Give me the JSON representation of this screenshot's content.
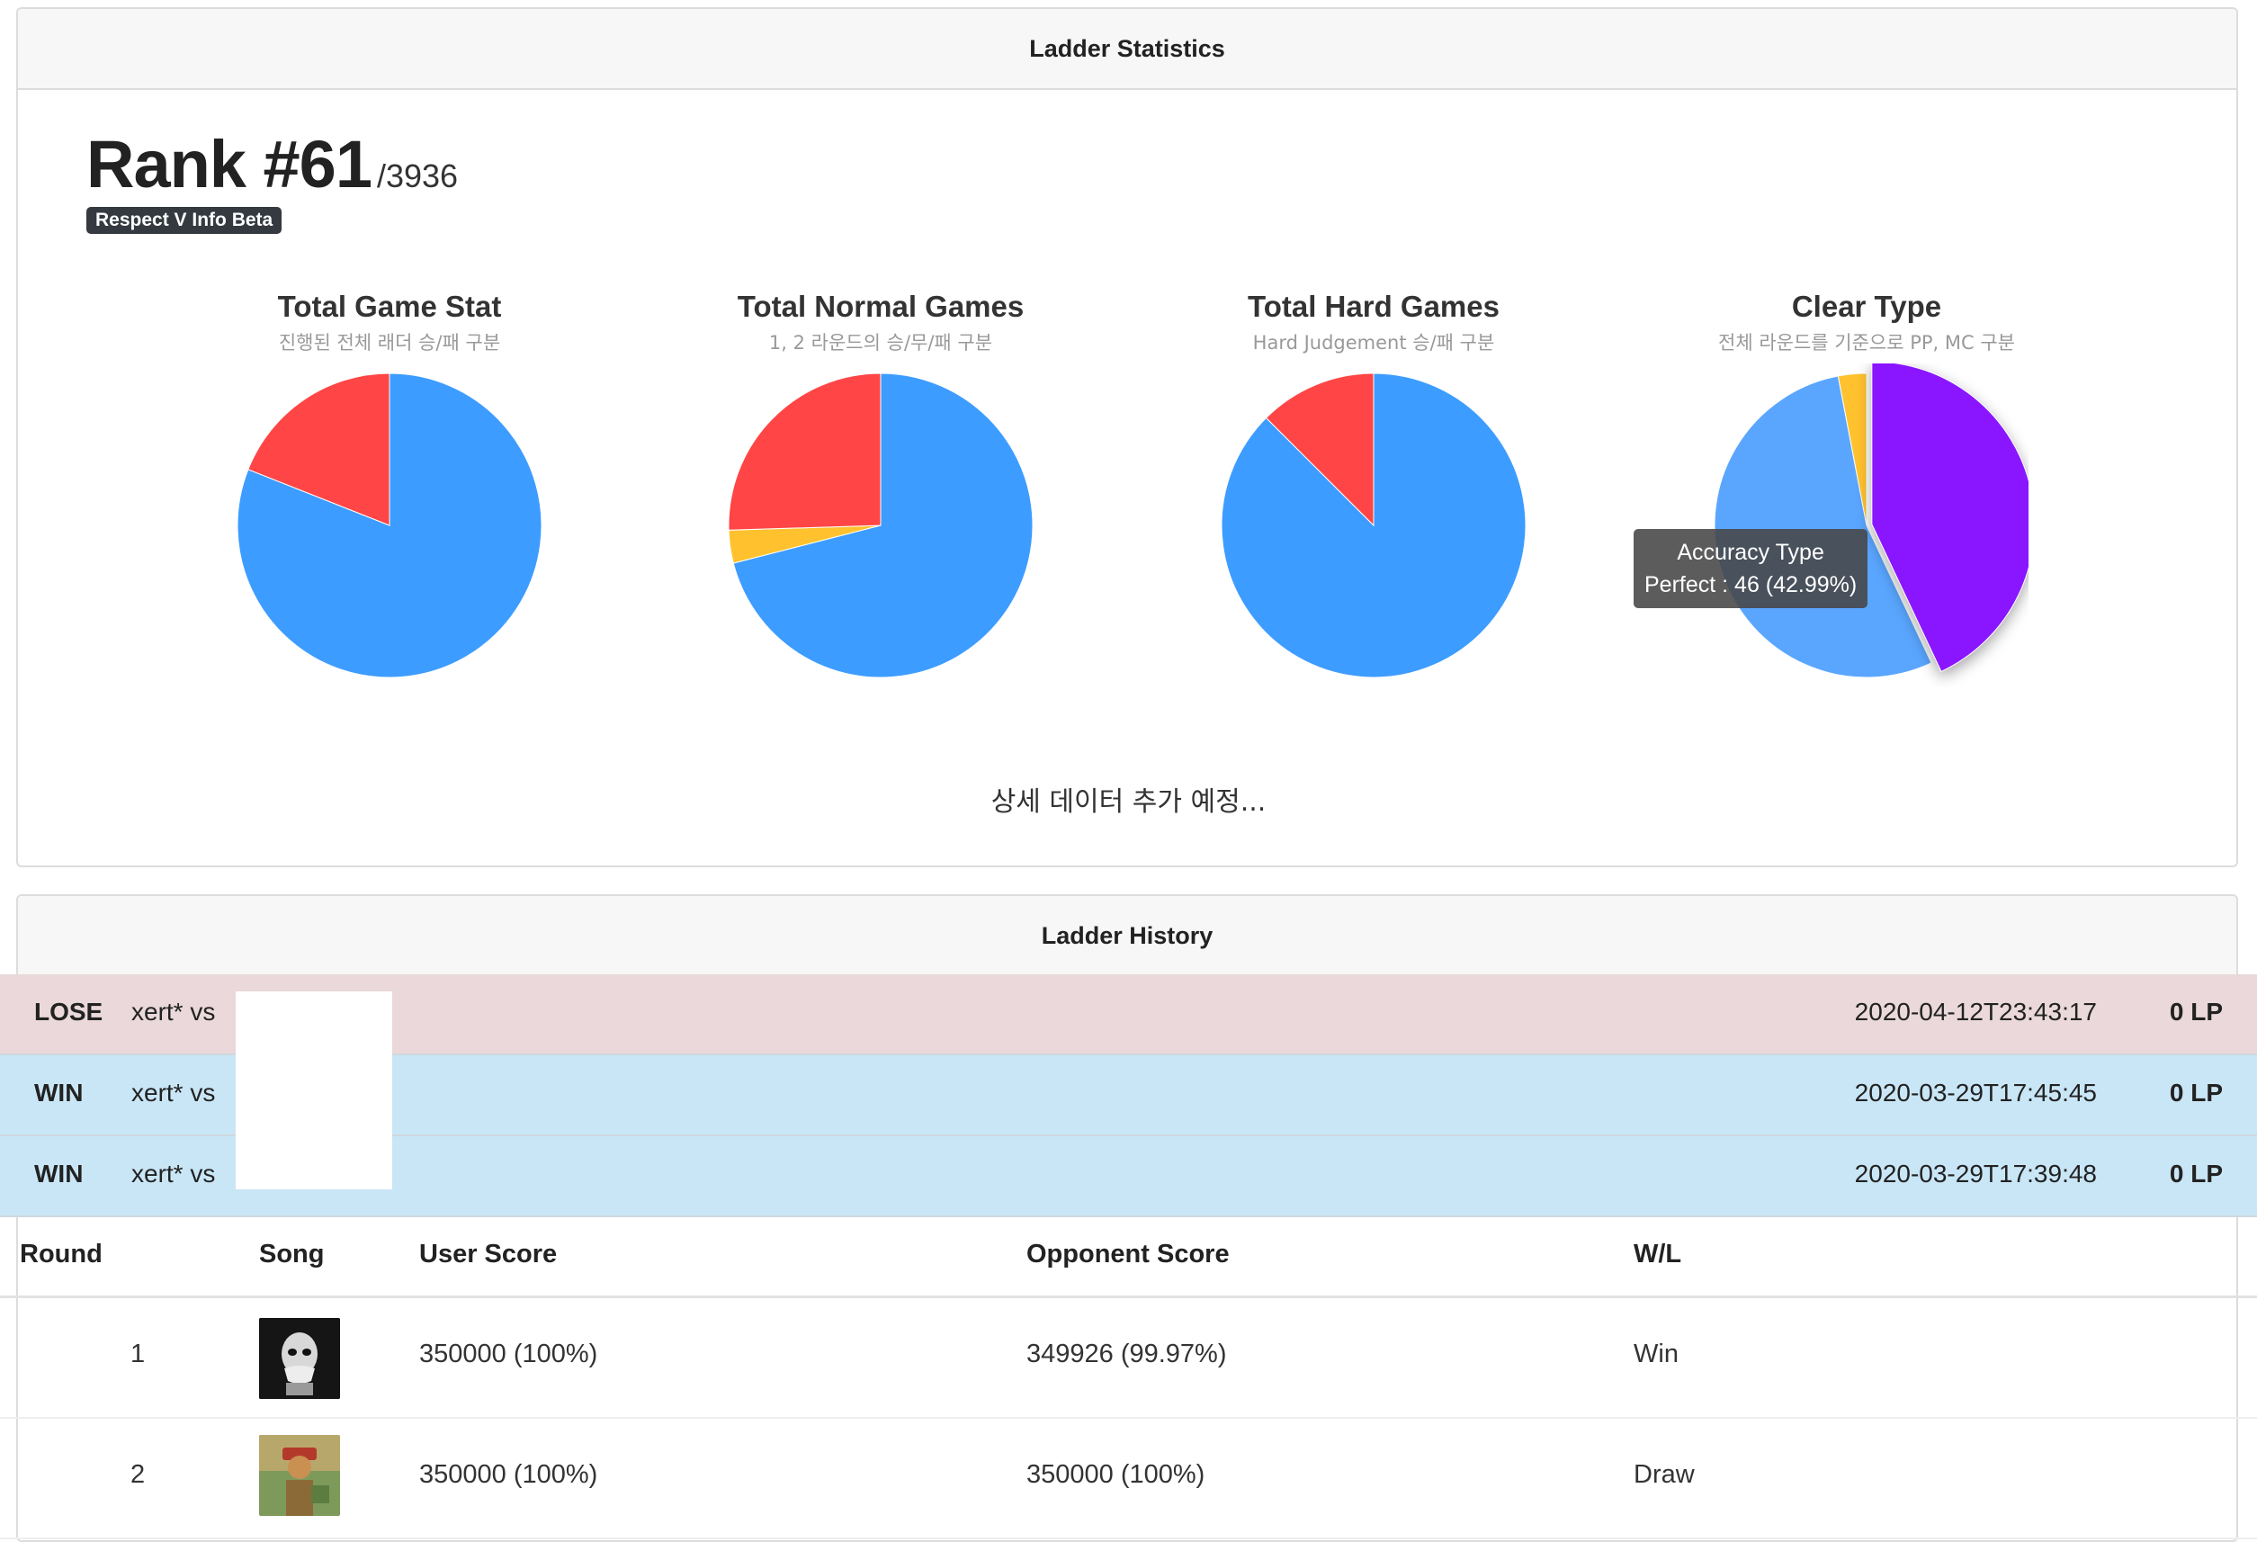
{
  "stats_card": {
    "header": "Ladder Statistics",
    "rank_label": "Rank #61",
    "rank_total": "/3936",
    "badge": "Respect V Info Beta",
    "more_note": "상세 데이터 추가 예정..."
  },
  "charts": [
    {
      "title": "Total Game Stat",
      "subtitle": "진행된 전체 래더 승/패 구분",
      "slices": [
        {
          "value": 0.81,
          "color": "#3d9cff"
        },
        {
          "value": 0.19,
          "color": "#ff4545"
        }
      ]
    },
    {
      "title": "Total Normal Games",
      "subtitle": "1, 2 라운드의 승/무/패 구분",
      "slices": [
        {
          "value": 0.71,
          "color": "#3d9cff"
        },
        {
          "value": 0.035,
          "color": "#ffc22e"
        },
        {
          "value": 0.255,
          "color": "#ff4545"
        }
      ]
    },
    {
      "title": "Total Hard Games",
      "subtitle": "Hard Judgement 승/패 구분",
      "slices": [
        {
          "value": 0.875,
          "color": "#3d9cff"
        },
        {
          "value": 0.125,
          "color": "#ff4545"
        }
      ]
    },
    {
      "title": "Clear Type",
      "subtitle": "전체 라운드를 기준으로 PP, MC 구분",
      "slices": [
        {
          "value": 0.4299,
          "color": "#8a16ff",
          "highlight": true
        },
        {
          "value": 0.5401,
          "color": "#5aa6ff"
        },
        {
          "value": 0.03,
          "color": "#ffc22e"
        }
      ],
      "tooltip": {
        "title": "Accuracy Type",
        "text": "Perfect : 46 (42.99%)"
      }
    }
  ],
  "history_card": {
    "header": "Ladder History",
    "matches": [
      {
        "result": "LOSE",
        "type": "lose",
        "players": "xert* vs",
        "time": "2020-04-12T23:43:17",
        "lp": "0 LP"
      },
      {
        "result": "WIN",
        "type": "win",
        "players": "xert* vs",
        "time": "2020-03-29T17:45:45",
        "lp": "0 LP"
      },
      {
        "result": "WIN",
        "type": "win",
        "players": "xert* vs",
        "time": "2020-03-29T17:39:48",
        "lp": "0 LP"
      }
    ],
    "table": {
      "columns": [
        "Round",
        "Song",
        "User Score",
        "Opponent Score",
        "W/L"
      ],
      "rows": [
        {
          "round": "1",
          "song_thumb": "skull-mask-album-art",
          "user_score": "350000 (100%)",
          "opponent_score": "349926 (99.97%)",
          "wl": "Win"
        },
        {
          "round": "2",
          "song_thumb": "figure-album-art",
          "user_score": "350000 (100%)",
          "opponent_score": "350000 (100%)",
          "wl": "Draw"
        }
      ]
    }
  }
}
